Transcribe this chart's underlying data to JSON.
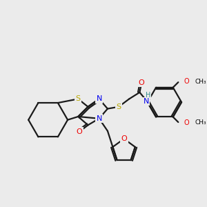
{
  "bg_color": "#ebebeb",
  "atom_colors": {
    "S": "#b8a800",
    "N": "#0000ee",
    "O": "#ee0000",
    "H": "#2e8b8b",
    "C": "#000000"
  },
  "bond_color": "#1a1a1a",
  "line_width": 1.6,
  "figsize": [
    3.0,
    3.0
  ],
  "dpi": 100
}
